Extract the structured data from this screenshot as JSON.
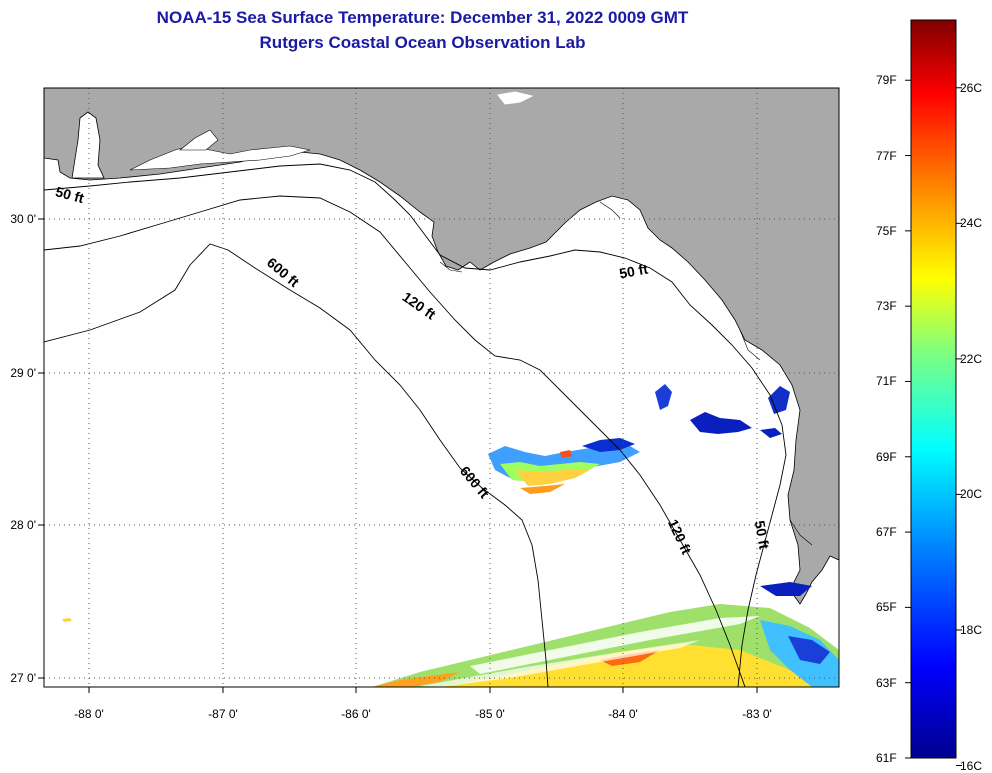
{
  "title": {
    "line1": "NOAA-15 Sea Surface Temperature:  December 31, 2022 0009 GMT",
    "line2": "Rutgers Coastal Ocean Observation Lab"
  },
  "map": {
    "lon_range": [
      -88.33,
      -82.5
    ],
    "lat_range": [
      26.93,
      30.85
    ],
    "lon_ticks": [
      {
        "value": -88,
        "label": "-88 0'"
      },
      {
        "value": -87,
        "label": "-87 0'"
      },
      {
        "value": -86,
        "label": "-86 0'"
      },
      {
        "value": -85,
        "label": "-85 0'"
      },
      {
        "value": -84,
        "label": "-84 0'"
      },
      {
        "value": -83,
        "label": "-83 0'"
      }
    ],
    "lat_ticks": [
      {
        "value": 30,
        "label": "30 0'"
      },
      {
        "value": 29,
        "label": "29 0'"
      },
      {
        "value": 28,
        "label": "28 0'"
      },
      {
        "value": 27,
        "label": "27 0'"
      }
    ],
    "contour_labels": [
      {
        "text": "50 ft",
        "lon": -88.15,
        "lat": 30.12,
        "rotate": 15
      },
      {
        "text": "600 ft",
        "lon": -86.6,
        "lat": 29.62,
        "rotate": 40
      },
      {
        "text": "120 ft",
        "lon": -85.6,
        "lat": 29.4,
        "rotate": 35
      },
      {
        "text": "50 ft",
        "lon": -84.0,
        "lat": 29.62,
        "rotate": -10
      },
      {
        "text": "600 ft",
        "lon": -85.2,
        "lat": 28.25,
        "rotate": 50
      },
      {
        "text": "120 ft",
        "lon": -83.7,
        "lat": 27.9,
        "rotate": 65
      },
      {
        "text": "50 ft",
        "lon": -83.1,
        "lat": 27.92,
        "rotate": 80
      }
    ],
    "colors": {
      "land": "#a9a9a9",
      "water": "#ffffff",
      "grid": "#555555"
    }
  },
  "colorbar": {
    "fahrenheit": [
      "79F",
      "77F",
      "75F",
      "73F",
      "71F",
      "69F",
      "67F",
      "65F",
      "63F",
      "61F"
    ],
    "celsius": [
      "26C",
      "24C",
      "22C",
      "20C",
      "18C",
      "16C"
    ],
    "gradient": [
      "#00008f",
      "#0000ff",
      "#007fff",
      "#00ffff",
      "#7fff7f",
      "#ffff00",
      "#ff7f00",
      "#ff0000",
      "#7f0000"
    ]
  }
}
